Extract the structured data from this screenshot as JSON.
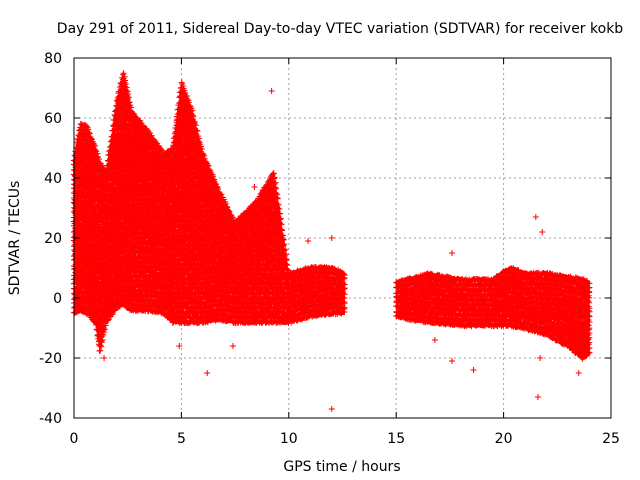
{
  "chart_data": {
    "type": "scatter",
    "title": "Day 291 of 2011, Sidereal Day-to-day VTEC variation (SDTVAR) for receiver kokb",
    "xlabel": "GPS time / hours",
    "ylabel": "SDTVAR / TECUs",
    "xlim": [
      0,
      25
    ],
    "ylim": [
      -40,
      80
    ],
    "xticks": [
      0,
      5,
      10,
      15,
      20,
      25
    ],
    "yticks": [
      -40,
      -20,
      0,
      20,
      40,
      60,
      80
    ],
    "xtick_labels": [
      "0",
      "5",
      "10",
      "15",
      "20",
      "25"
    ],
    "ytick_labels": [
      "-40",
      "-20",
      "0",
      "20",
      "40",
      "60",
      "80"
    ],
    "grid": true,
    "marker": "+",
    "color": "#ff0000",
    "series": [
      {
        "name": "kokb",
        "segments": [
          {
            "x_start": 0.0,
            "x_end": 12.6
          },
          {
            "x_start": 15.0,
            "x_end": 24.0
          }
        ],
        "envelope": [
          {
            "x": 0.0,
            "low": -5,
            "high": 46
          },
          {
            "x": 0.3,
            "low": -4,
            "high": 58
          },
          {
            "x": 0.6,
            "low": -5,
            "high": 57
          },
          {
            "x": 1.0,
            "low": -8,
            "high": 50
          },
          {
            "x": 1.2,
            "low": -18,
            "high": 45
          },
          {
            "x": 1.5,
            "low": -8,
            "high": 42
          },
          {
            "x": 2.0,
            "low": -3,
            "high": 66
          },
          {
            "x": 2.3,
            "low": -2,
            "high": 75
          },
          {
            "x": 2.7,
            "low": -4,
            "high": 62
          },
          {
            "x": 3.5,
            "low": -4,
            "high": 55
          },
          {
            "x": 4.2,
            "low": -5,
            "high": 48
          },
          {
            "x": 4.6,
            "low": -8,
            "high": 50
          },
          {
            "x": 5.0,
            "low": -8,
            "high": 72
          },
          {
            "x": 5.5,
            "low": -8,
            "high": 62
          },
          {
            "x": 6.0,
            "low": -8,
            "high": 48
          },
          {
            "x": 6.8,
            "low": -7,
            "high": 35
          },
          {
            "x": 7.5,
            "low": -8,
            "high": 25
          },
          {
            "x": 8.5,
            "low": -8,
            "high": 32
          },
          {
            "x": 9.3,
            "low": -8,
            "high": 42
          },
          {
            "x": 10.0,
            "low": -8,
            "high": 8
          },
          {
            "x": 11.0,
            "low": -6,
            "high": 10
          },
          {
            "x": 12.0,
            "low": -5,
            "high": 10
          },
          {
            "x": 12.6,
            "low": -5,
            "high": 8
          },
          {
            "x": 15.0,
            "low": -6,
            "high": 5
          },
          {
            "x": 16.5,
            "low": -8,
            "high": 8
          },
          {
            "x": 18.0,
            "low": -9,
            "high": 6
          },
          {
            "x": 19.5,
            "low": -9,
            "high": 6
          },
          {
            "x": 20.3,
            "low": -9,
            "high": 10
          },
          {
            "x": 21.0,
            "low": -10,
            "high": 8
          },
          {
            "x": 22.0,
            "low": -12,
            "high": 8
          },
          {
            "x": 23.0,
            "low": -16,
            "high": 7
          },
          {
            "x": 23.7,
            "low": -20,
            "high": 6
          },
          {
            "x": 24.0,
            "low": -18,
            "high": 5
          }
        ],
        "outliers": [
          {
            "x": 6.2,
            "y": -25
          },
          {
            "x": 12.0,
            "y": -37
          },
          {
            "x": 21.6,
            "y": -33
          },
          {
            "x": 23.5,
            "y": -25
          },
          {
            "x": 21.7,
            "y": -20
          },
          {
            "x": 18.6,
            "y": -24
          },
          {
            "x": 17.6,
            "y": -21
          },
          {
            "x": 4.9,
            "y": -16
          },
          {
            "x": 9.2,
            "y": 69
          },
          {
            "x": 12.0,
            "y": 20
          },
          {
            "x": 10.9,
            "y": 19
          },
          {
            "x": 8.4,
            "y": 37
          },
          {
            "x": 21.5,
            "y": 27
          },
          {
            "x": 21.8,
            "y": 22
          },
          {
            "x": 17.6,
            "y": 15
          },
          {
            "x": 16.8,
            "y": -14
          },
          {
            "x": 7.4,
            "y": -16
          },
          {
            "x": 1.4,
            "y": -20
          }
        ]
      }
    ]
  }
}
